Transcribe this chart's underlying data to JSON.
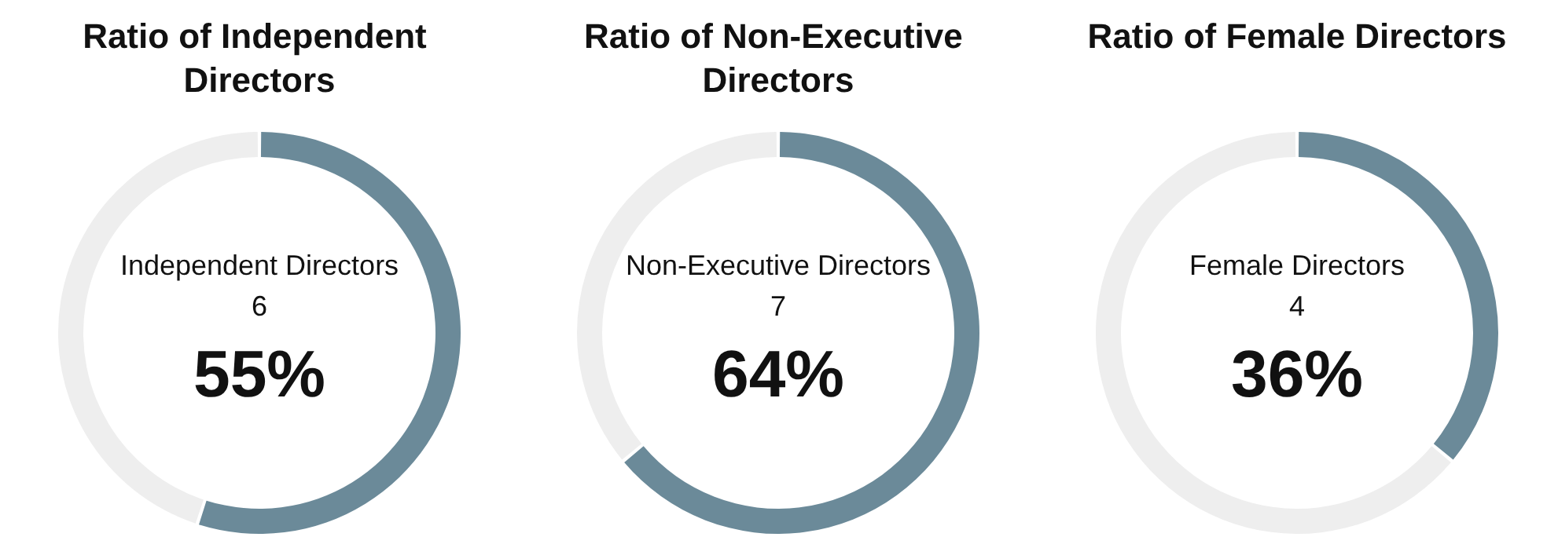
{
  "chart_data": [
    {
      "type": "donut",
      "title": "Ratio of Independent Directors",
      "categories": [
        "Independent Directors",
        null
      ],
      "values": [
        55,
        45
      ],
      "colors": [
        "#6b8a99",
        "#eeeeee"
      ],
      "value_labels": [
        "55%",
        null
      ],
      "annotations": [
        "6"
      ]
    },
    {
      "type": "donut",
      "title": "Ratio of Non-Executive Directors",
      "categories": [
        "Non-Executive Directors",
        null
      ],
      "values": [
        64,
        36
      ],
      "colors": [
        "#6b8a99",
        "#eeeeee"
      ],
      "value_labels": [
        "64%",
        null
      ],
      "annotations": [
        "7"
      ]
    },
    {
      "type": "donut",
      "title": "Ratio of Female Directors",
      "categories": [
        "Female Directors",
        null
      ],
      "values": [
        36,
        64
      ],
      "colors": [
        "#6b8a99",
        "#eeeeee"
      ],
      "value_labels": [
        "36%",
        null
      ],
      "annotations": [
        "4"
      ]
    }
  ]
}
